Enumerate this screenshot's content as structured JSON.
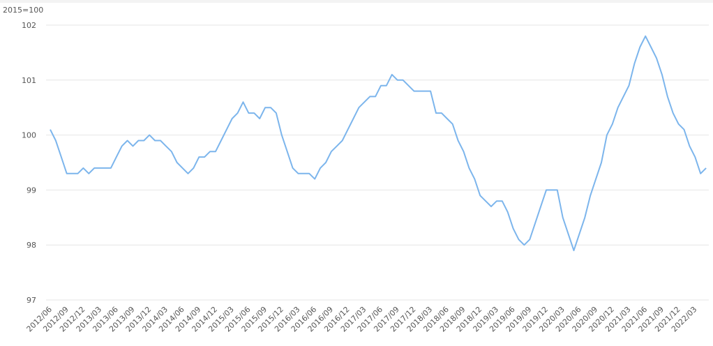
{
  "chart_data": {
    "type": "line",
    "y_axis_label": "2015=100",
    "categories": [
      "2012/06",
      null,
      null,
      "2012/09",
      null,
      null,
      "2012/12",
      null,
      null,
      "2013/03",
      null,
      null,
      "2013/06",
      null,
      null,
      "2013/09",
      null,
      null,
      "2013/12",
      null,
      null,
      "2014/03",
      null,
      null,
      "2014/06",
      null,
      null,
      "2014/09",
      null,
      null,
      "2014/12",
      null,
      null,
      "2015/03",
      null,
      null,
      "2015/06",
      null,
      null,
      "2015/09",
      null,
      null,
      "2015/12",
      null,
      null,
      "2016/03",
      null,
      null,
      "2016/06",
      null,
      null,
      "2016/09",
      null,
      null,
      "2016/12",
      null,
      null,
      "2017/03",
      null,
      null,
      "2017/06",
      null,
      null,
      "2017/09",
      null,
      null,
      "2017/12",
      null,
      null,
      "2018/03",
      null,
      null,
      "2018/06",
      null,
      null,
      "2018/09",
      null,
      null,
      "2018/12",
      null,
      null,
      "2019/03",
      null,
      null,
      "2019/06",
      null,
      null,
      "2019/09",
      null,
      null,
      "2019/12",
      null,
      null,
      "2020/03",
      null,
      null,
      "2020/06",
      null,
      null,
      "2020/09",
      null,
      null,
      "2020/12",
      null,
      null,
      "2021/03",
      null,
      null,
      "2021/06",
      null,
      null,
      "2021/09",
      null,
      null,
      "2021/12",
      null,
      null,
      "2022/03",
      null,
      null
    ],
    "values": [
      100.1,
      99.9,
      99.6,
      99.3,
      99.3,
      99.3,
      99.4,
      99.3,
      99.4,
      99.4,
      99.4,
      99.4,
      99.6,
      99.8,
      99.9,
      99.8,
      99.9,
      99.9,
      100.0,
      99.9,
      99.9,
      99.8,
      99.7,
      99.5,
      99.4,
      99.3,
      99.4,
      99.6,
      99.6,
      99.7,
      99.7,
      99.9,
      100.1,
      100.3,
      100.4,
      100.6,
      100.4,
      100.4,
      100.3,
      100.5,
      100.5,
      100.4,
      100.0,
      99.7,
      99.4,
      99.3,
      99.3,
      99.3,
      99.2,
      99.4,
      99.5,
      99.7,
      99.8,
      99.9,
      100.1,
      100.3,
      100.5,
      100.6,
      100.7,
      100.7,
      100.9,
      100.9,
      101.1,
      101.0,
      101.0,
      100.9,
      100.8,
      100.8,
      100.8,
      100.8,
      100.4,
      100.4,
      100.3,
      100.2,
      99.9,
      99.7,
      99.4,
      99.2,
      98.9,
      98.8,
      98.7,
      98.8,
      98.8,
      98.6,
      98.3,
      98.1,
      98.0,
      98.1,
      98.4,
      98.7,
      99.0,
      99.0,
      99.0,
      98.5,
      98.2,
      97.9,
      98.2,
      98.5,
      98.9,
      99.2,
      99.5,
      100.0,
      100.2,
      100.5,
      100.7,
      100.9,
      101.3,
      101.6,
      101.8,
      101.6,
      101.4,
      101.1,
      100.7,
      100.4,
      100.2,
      100.1,
      99.8,
      99.6,
      99.3,
      99.4
    ],
    "color": "#7cb5ec",
    "ylim": [
      97,
      102
    ],
    "yticks": [
      97,
      98,
      99,
      100,
      101,
      102
    ],
    "grid": true
  }
}
